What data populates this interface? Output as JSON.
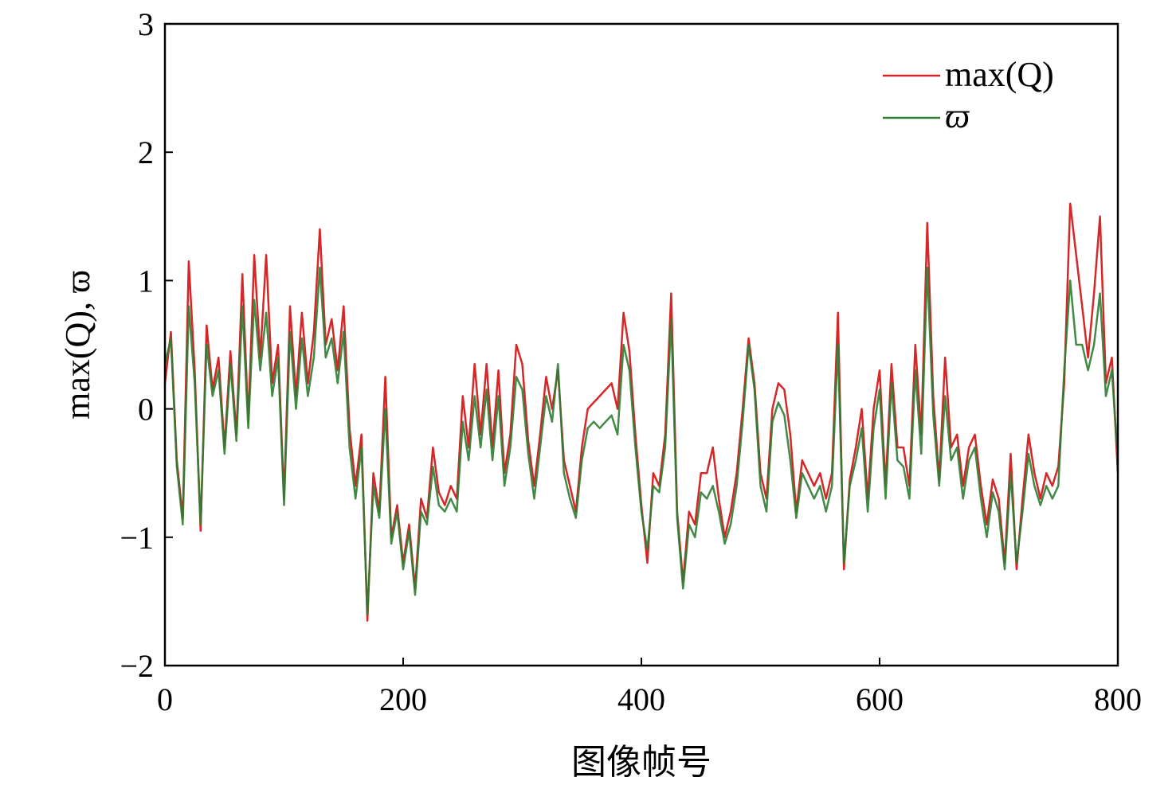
{
  "chart_data": {
    "type": "line",
    "title": "",
    "xlabel": "图像帧号",
    "ylabel": "max(Q), ϖ",
    "xlim": [
      0,
      800
    ],
    "ylim": [
      -2,
      3
    ],
    "xticks": [
      0,
      200,
      400,
      600,
      800
    ],
    "yticks": [
      -2,
      -1,
      0,
      1,
      2,
      3
    ],
    "xtick_labels": [
      "0",
      "200",
      "400",
      "600",
      "800"
    ],
    "ytick_labels": [
      "−2",
      "−1",
      "0",
      "1",
      "2",
      "3"
    ],
    "grid": false,
    "legend": {
      "position": "top-right",
      "entries": [
        "max(Q)",
        "ϖ"
      ]
    },
    "series": [
      {
        "name": "max(Q)",
        "color": "#d62728",
        "x": [
          0,
          5,
          10,
          15,
          20,
          25,
          30,
          35,
          40,
          45,
          50,
          55,
          60,
          65,
          70,
          75,
          80,
          85,
          90,
          95,
          100,
          105,
          110,
          115,
          120,
          125,
          130,
          135,
          140,
          145,
          150,
          155,
          160,
          165,
          170,
          175,
          180,
          185,
          190,
          195,
          200,
          205,
          210,
          215,
          220,
          225,
          230,
          235,
          240,
          245,
          250,
          255,
          260,
          265,
          270,
          275,
          280,
          285,
          290,
          295,
          300,
          305,
          310,
          315,
          320,
          325,
          330,
          335,
          340,
          345,
          350,
          355,
          360,
          365,
          370,
          375,
          380,
          385,
          390,
          395,
          400,
          405,
          410,
          415,
          420,
          425,
          430,
          435,
          440,
          445,
          450,
          455,
          460,
          465,
          470,
          475,
          480,
          485,
          490,
          495,
          500,
          505,
          510,
          515,
          520,
          525,
          530,
          535,
          540,
          545,
          550,
          555,
          560,
          565,
          570,
          575,
          580,
          585,
          590,
          595,
          600,
          605,
          610,
          615,
          620,
          625,
          630,
          635,
          640,
          645,
          650,
          655,
          660,
          665,
          670,
          675,
          680,
          685,
          690,
          695,
          700,
          705,
          710,
          715,
          720,
          725,
          730,
          735,
          740,
          745,
          750,
          755,
          760,
          765,
          770,
          775,
          780,
          785,
          790,
          795,
          800
        ],
        "y": [
          0.2,
          0.6,
          -0.4,
          -0.85,
          1.15,
          0.3,
          -0.95,
          0.65,
          0.15,
          0.4,
          -0.3,
          0.45,
          -0.2,
          1.05,
          -0.1,
          1.2,
          0.4,
          1.2,
          0.2,
          0.5,
          -0.7,
          0.8,
          0.1,
          0.75,
          0.2,
          0.6,
          1.4,
          0.5,
          0.7,
          0.3,
          0.8,
          -0.15,
          -0.6,
          -0.2,
          -1.65,
          -0.5,
          -0.8,
          0.25,
          -1.0,
          -0.75,
          -1.2,
          -0.9,
          -1.4,
          -0.7,
          -0.85,
          -0.3,
          -0.65,
          -0.75,
          -0.6,
          -0.7,
          0.1,
          -0.3,
          0.35,
          -0.2,
          0.35,
          -0.3,
          0.3,
          -0.5,
          -0.2,
          0.5,
          0.35,
          -0.25,
          -0.6,
          -0.2,
          0.25,
          0.0,
          0.3,
          -0.4,
          -0.6,
          -0.8,
          -0.3,
          0.0,
          0.05,
          0.1,
          0.15,
          0.2,
          0.0,
          0.75,
          0.45,
          -0.2,
          -0.75,
          -1.2,
          -0.5,
          -0.6,
          -0.2,
          0.9,
          -0.8,
          -1.35,
          -0.8,
          -0.9,
          -0.5,
          -0.5,
          -0.3,
          -0.7,
          -1.0,
          -0.8,
          -0.5,
          0.0,
          0.55,
          0.2,
          -0.5,
          -0.7,
          0.0,
          0.2,
          0.15,
          -0.2,
          -0.8,
          -0.4,
          -0.5,
          -0.6,
          -0.5,
          -0.7,
          -0.5,
          0.75,
          -1.25,
          -0.55,
          -0.3,
          0.0,
          -0.7,
          0.0,
          0.3,
          -0.6,
          0.35,
          -0.3,
          -0.3,
          -0.6,
          0.5,
          -0.2,
          1.45,
          0.1,
          -0.55,
          0.4,
          -0.3,
          -0.2,
          -0.6,
          -0.3,
          -0.2,
          -0.6,
          -0.9,
          -0.55,
          -0.7,
          -1.2,
          -0.35,
          -1.25,
          -0.7,
          -0.2,
          -0.5,
          -0.7,
          -0.5,
          -0.6,
          -0.45,
          0.2,
          1.6,
          1.2,
          0.8,
          0.4,
          0.9,
          1.5,
          0.2,
          0.4,
          -0.5
        ]
      },
      {
        "name": "ϖ",
        "color": "#2e7d32",
        "x": [
          0,
          5,
          10,
          15,
          20,
          25,
          30,
          35,
          40,
          45,
          50,
          55,
          60,
          65,
          70,
          75,
          80,
          85,
          90,
          95,
          100,
          105,
          110,
          115,
          120,
          125,
          130,
          135,
          140,
          145,
          150,
          155,
          160,
          165,
          170,
          175,
          180,
          185,
          190,
          195,
          200,
          205,
          210,
          215,
          220,
          225,
          230,
          235,
          240,
          245,
          250,
          255,
          260,
          265,
          270,
          275,
          280,
          285,
          290,
          295,
          300,
          305,
          310,
          315,
          320,
          325,
          330,
          335,
          340,
          345,
          350,
          355,
          360,
          365,
          370,
          375,
          380,
          385,
          390,
          395,
          400,
          405,
          410,
          415,
          420,
          425,
          430,
          435,
          440,
          445,
          450,
          455,
          460,
          465,
          470,
          475,
          480,
          485,
          490,
          495,
          500,
          505,
          510,
          515,
          520,
          525,
          530,
          535,
          540,
          545,
          550,
          555,
          560,
          565,
          570,
          575,
          580,
          585,
          590,
          595,
          600,
          605,
          610,
          615,
          620,
          625,
          630,
          635,
          640,
          645,
          650,
          655,
          660,
          665,
          670,
          675,
          680,
          685,
          690,
          695,
          700,
          705,
          710,
          715,
          720,
          725,
          730,
          735,
          740,
          745,
          750,
          755,
          760,
          765,
          770,
          775,
          780,
          785,
          790,
          795,
          800
        ],
        "y": [
          0.35,
          0.55,
          -0.45,
          -0.9,
          0.8,
          0.2,
          -0.9,
          0.5,
          0.1,
          0.3,
          -0.35,
          0.35,
          -0.25,
          0.8,
          -0.15,
          0.85,
          0.3,
          0.75,
          0.1,
          0.4,
          -0.75,
          0.6,
          0.0,
          0.55,
          0.1,
          0.4,
          1.1,
          0.4,
          0.55,
          0.2,
          0.6,
          -0.3,
          -0.7,
          -0.3,
          -1.6,
          -0.6,
          -0.85,
          0.0,
          -1.05,
          -0.8,
          -1.25,
          -0.95,
          -1.45,
          -0.8,
          -0.9,
          -0.45,
          -0.75,
          -0.8,
          -0.7,
          -0.8,
          -0.1,
          -0.4,
          0.1,
          -0.3,
          0.15,
          -0.4,
          0.1,
          -0.6,
          -0.3,
          0.25,
          0.15,
          -0.35,
          -0.7,
          -0.3,
          0.1,
          -0.1,
          0.35,
          -0.5,
          -0.7,
          -0.85,
          -0.4,
          -0.15,
          -0.1,
          -0.15,
          -0.1,
          -0.05,
          -0.2,
          0.5,
          0.3,
          -0.3,
          -0.8,
          -1.1,
          -0.6,
          -0.65,
          -0.3,
          0.7,
          -0.85,
          -1.4,
          -0.9,
          -1.0,
          -0.65,
          -0.7,
          -0.6,
          -0.8,
          -1.05,
          -0.9,
          -0.6,
          -0.1,
          0.5,
          0.15,
          -0.6,
          -0.8,
          -0.1,
          0.05,
          -0.05,
          -0.4,
          -0.85,
          -0.5,
          -0.6,
          -0.7,
          -0.6,
          -0.8,
          -0.6,
          0.5,
          -1.2,
          -0.6,
          -0.4,
          -0.15,
          -0.8,
          -0.15,
          0.15,
          -0.7,
          0.2,
          -0.4,
          -0.45,
          -0.7,
          0.3,
          -0.35,
          1.1,
          -0.05,
          -0.6,
          0.1,
          -0.4,
          -0.3,
          -0.7,
          -0.4,
          -0.3,
          -0.7,
          -1.0,
          -0.65,
          -0.8,
          -1.25,
          -0.5,
          -1.2,
          -0.8,
          -0.35,
          -0.6,
          -0.75,
          -0.6,
          -0.7,
          -0.6,
          0.3,
          1.0,
          0.5,
          0.5,
          0.3,
          0.5,
          0.9,
          0.1,
          0.3,
          -0.4
        ]
      }
    ]
  }
}
